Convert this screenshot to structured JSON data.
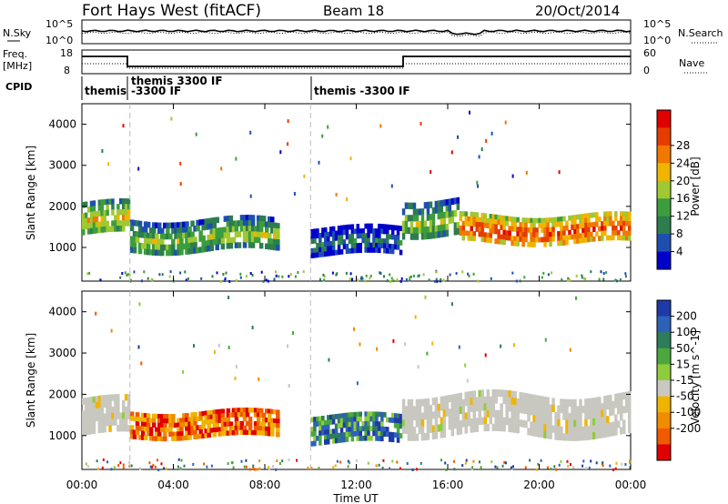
{
  "header": {
    "station": "Fort Hays West (fitACF)",
    "beam": "Beam 18",
    "date": "20/Oct/2014"
  },
  "panel_labels": {
    "nsky": "N.Sky",
    "freq_line1": "Freq.",
    "freq_line2": "[MHz]",
    "cpid": "CPID",
    "nsearch": "N.Search",
    "nave": "Nave",
    "nsky_top_tick": "10^5",
    "nsky_bottom_tick": "10^0",
    "freq_ticks": [
      "18",
      "8"
    ],
    "nave_ticks": [
      "60",
      "0"
    ]
  },
  "cpid_labels": [
    "themis",
    "themis 3300 IF",
    "-3300 IF",
    "themis -3300 IF"
  ],
  "colors": {
    "power_scale": [
      "#0000cc",
      "#1e4fb0",
      "#2d7d4f",
      "#3c9d3c",
      "#a0c832",
      "#f0b400",
      "#f07800",
      "#e63c00",
      "#e00000"
    ],
    "velocity_scale": [
      "#1e3aa8",
      "#2d62b8",
      "#2e7d5a",
      "#4aa83c",
      "#8fcc3c",
      "#c8c8c0",
      "#f0b400",
      "#f08c00",
      "#f05a00",
      "#e00000"
    ]
  },
  "chart_data": [
    {
      "type": "heatmap",
      "title": "",
      "xlabel": "Time UT",
      "ylabel": "Slant Range [km]",
      "x_ticks": [
        "00:00",
        "04:00",
        "08:00",
        "12:00",
        "16:00",
        "20:00",
        "00:00"
      ],
      "xlim_hours": [
        0,
        24
      ],
      "y_ticks": [
        1000,
        2000,
        3000,
        4000
      ],
      "ylim_km": [
        180,
        4500
      ],
      "colorbar": {
        "label": "Power [dB]",
        "ticks": [
          4,
          8,
          12,
          16,
          20,
          24,
          28
        ],
        "range": [
          0,
          32
        ]
      },
      "echo_bands": [
        {
          "t_start": 0.0,
          "t_end": 2.1,
          "range_km": [
            1300,
            2100
          ],
          "level": "medium-high"
        },
        {
          "t_start": 2.1,
          "t_end": 8.6,
          "range_km": [
            900,
            1700
          ],
          "level": "medium"
        },
        {
          "t_start": 10.0,
          "t_end": 14.0,
          "range_km": [
            800,
            1500
          ],
          "level": "low"
        },
        {
          "t_start": 14.0,
          "t_end": 16.5,
          "range_km": [
            1300,
            2200
          ],
          "level": "medium"
        },
        {
          "t_start": 16.5,
          "t_end": 24.0,
          "range_km": [
            1100,
            1800
          ],
          "level": "high"
        }
      ]
    },
    {
      "type": "heatmap",
      "title": "",
      "xlabel": "Time UT",
      "ylabel": "Slant Range [km]",
      "x_ticks": [
        "00:00",
        "04:00",
        "08:00",
        "12:00",
        "16:00",
        "20:00",
        "00:00"
      ],
      "xlim_hours": [
        0,
        24
      ],
      "y_ticks": [
        1000,
        2000,
        3000,
        4000
      ],
      "ylim_km": [
        180,
        4500
      ],
      "colorbar": {
        "label": "Velocity [m s^-1]",
        "ticks": [
          200,
          100,
          50,
          15,
          -15,
          -50,
          -100,
          -200
        ]
      },
      "echo_bands": [
        {
          "t_start": 0.0,
          "t_end": 2.1,
          "range_km": [
            1000,
            1900
          ],
          "level": "ground-scatter"
        },
        {
          "t_start": 2.1,
          "t_end": 8.6,
          "range_km": [
            950,
            1600
          ],
          "level": "negative"
        },
        {
          "t_start": 10.0,
          "t_end": 14.0,
          "range_km": [
            800,
            1500
          ],
          "level": "positive"
        },
        {
          "t_start": 14.0,
          "t_end": 24.0,
          "range_km": [
            1000,
            2000
          ],
          "level": "ground-scatter"
        }
      ]
    }
  ]
}
